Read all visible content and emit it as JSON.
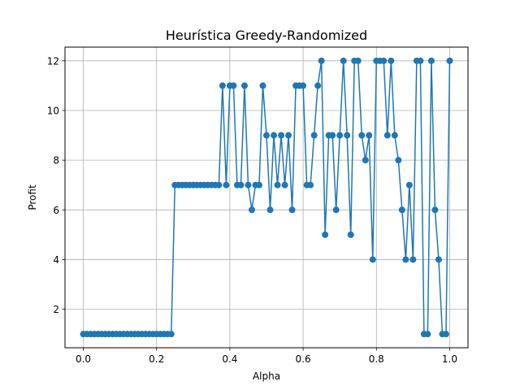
{
  "chart_data": {
    "type": "line",
    "title": "Heurística Greedy-Randomized",
    "xlabel": "Alpha",
    "ylabel": "Profit",
    "xlim": [
      -0.05,
      1.05
    ],
    "ylim": [
      0.45,
      12.55
    ],
    "xticks": [
      0.0,
      0.2,
      0.4,
      0.6,
      0.8,
      1.0
    ],
    "xtick_labels": [
      "0.0",
      "0.2",
      "0.4",
      "0.6",
      "0.8",
      "1.0"
    ],
    "yticks": [
      2,
      4,
      6,
      8,
      10,
      12
    ],
    "ytick_labels": [
      "2",
      "4",
      "6",
      "8",
      "10",
      "12"
    ],
    "grid": true,
    "color": "#1f77b4",
    "series": [
      {
        "x": [
          0.0,
          0.01,
          0.02,
          0.03,
          0.04,
          0.05,
          0.06,
          0.07,
          0.08,
          0.09,
          0.1,
          0.11,
          0.12,
          0.13,
          0.14,
          0.15,
          0.16,
          0.17,
          0.18,
          0.19,
          0.2,
          0.21,
          0.22,
          0.23,
          0.24,
          0.25,
          0.26,
          0.27,
          0.28,
          0.29,
          0.3,
          0.31,
          0.32,
          0.33,
          0.34,
          0.35,
          0.36,
          0.37,
          0.38,
          0.39,
          0.4,
          0.41,
          0.42,
          0.43,
          0.44,
          0.45,
          0.46,
          0.47,
          0.48,
          0.49,
          0.5,
          0.51,
          0.52,
          0.53,
          0.54,
          0.55,
          0.56,
          0.57,
          0.58,
          0.59,
          0.6,
          0.61,
          0.62,
          0.63,
          0.64,
          0.65,
          0.66,
          0.67,
          0.68,
          0.69,
          0.7,
          0.71,
          0.72,
          0.73,
          0.74,
          0.75,
          0.76,
          0.77,
          0.78,
          0.79,
          0.8,
          0.81,
          0.82,
          0.83,
          0.84,
          0.85,
          0.86,
          0.87,
          0.88,
          0.89,
          0.9,
          0.91,
          0.92,
          0.93,
          0.94,
          0.95,
          0.96,
          0.97,
          0.98,
          0.99,
          1.0
        ],
        "y": [
          1,
          1,
          1,
          1,
          1,
          1,
          1,
          1,
          1,
          1,
          1,
          1,
          1,
          1,
          1,
          1,
          1,
          1,
          1,
          1,
          1,
          1,
          1,
          1,
          1,
          7,
          7,
          7,
          7,
          7,
          7,
          7,
          7,
          7,
          7,
          7,
          7,
          7,
          11,
          7,
          11,
          11,
          7,
          7,
          11,
          7,
          6,
          7,
          7,
          11,
          9,
          6,
          9,
          7,
          9,
          7,
          9,
          6,
          11,
          11,
          11,
          7,
          7,
          9,
          11,
          12,
          5,
          9,
          9,
          6,
          9,
          12,
          9,
          5,
          12,
          12,
          9,
          8,
          9,
          4,
          12,
          12,
          12,
          9,
          12,
          9,
          8,
          6,
          4,
          7,
          4,
          12,
          12,
          1,
          1,
          12,
          6,
          4,
          1,
          1,
          12
        ]
      }
    ]
  }
}
